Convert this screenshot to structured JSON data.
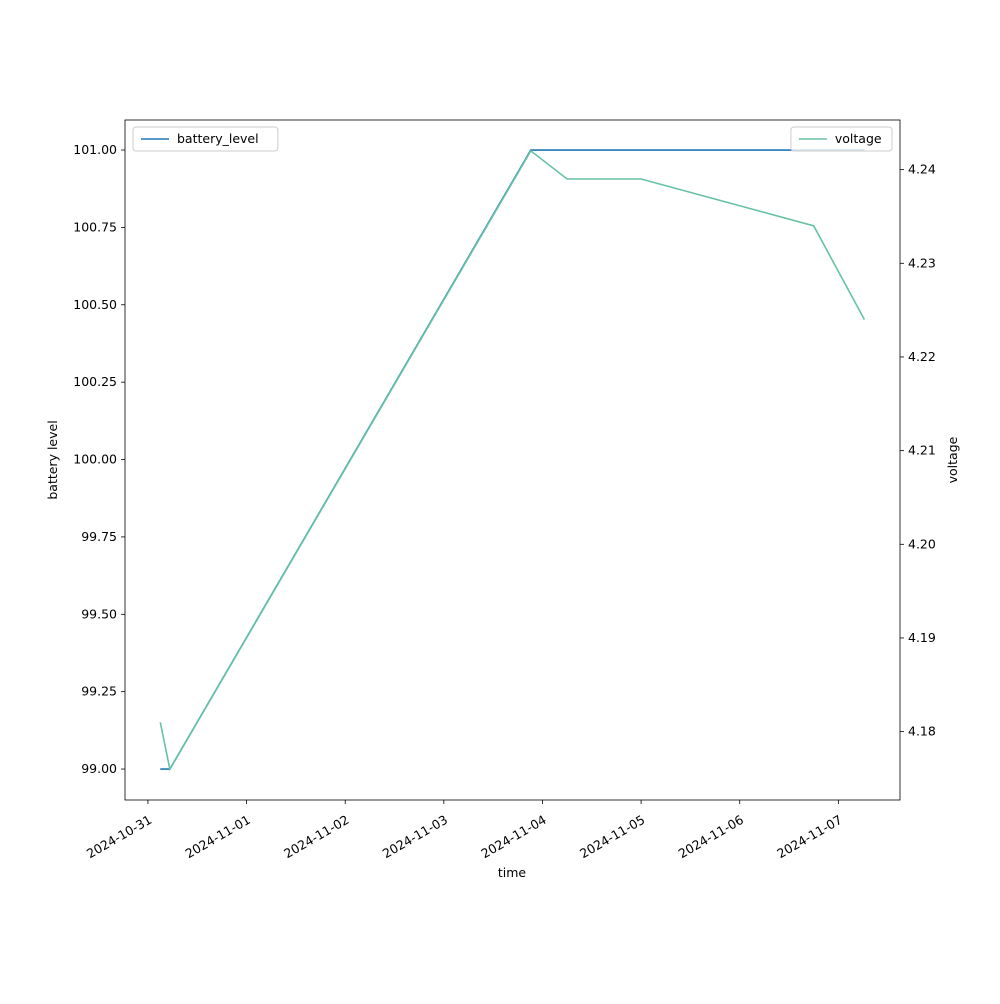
{
  "chart_data": {
    "type": "line",
    "x_label": "time",
    "y_label": "battery level",
    "y2_label": "voltage",
    "x": [
      "2024-10-31T03:00",
      "2024-10-31T05:20",
      "2024-11-03T21:10",
      "2024-11-04T06:00",
      "2024-11-05T00:00",
      "2024-11-06T18:00",
      "2024-11-07T06:20"
    ],
    "series": [
      {
        "name": "battery_level",
        "color": "#1f77b4",
        "values": [
          99,
          99,
          101,
          101,
          101,
          101,
          101
        ],
        "legend": "upper left"
      },
      {
        "name": "voltage",
        "color": "#66c2a5",
        "axis": "y2",
        "values": [
          4.181,
          4.176,
          4.242,
          4.239,
          4.239,
          4.234,
          4.224
        ],
        "legend": "upper right"
      }
    ],
    "xlim": [
      "2024-10-30T18:25",
      "2024-11-07T15:00"
    ],
    "xticks": [
      "2024-10-31",
      "2024-11-01",
      "2024-11-02",
      "2024-11-03",
      "2024-11-04",
      "2024-11-05",
      "2024-11-06",
      "2024-11-07"
    ],
    "ylim": [
      98.9,
      101.097
    ],
    "yticks": [
      {
        "value": 99,
        "label": "99.00"
      },
      {
        "value": 99.25,
        "label": "99.25"
      },
      {
        "value": 99.5,
        "label": "99.50"
      },
      {
        "value": 99.75,
        "label": "99.75"
      },
      {
        "value": 100,
        "label": "100.00"
      },
      {
        "value": 100.25,
        "label": "100.25"
      },
      {
        "value": 100.5,
        "label": "100.50"
      },
      {
        "value": 100.75,
        "label": "100.75"
      },
      {
        "value": 101,
        "label": "101.00"
      }
    ],
    "y2lim": [
      4.1727,
      4.2453
    ],
    "y2ticks": [
      4.18,
      4.19,
      {
        "value": 4.2,
        "label": "4.20"
      },
      4.21,
      4.22,
      4.23,
      4.24
    ]
  }
}
